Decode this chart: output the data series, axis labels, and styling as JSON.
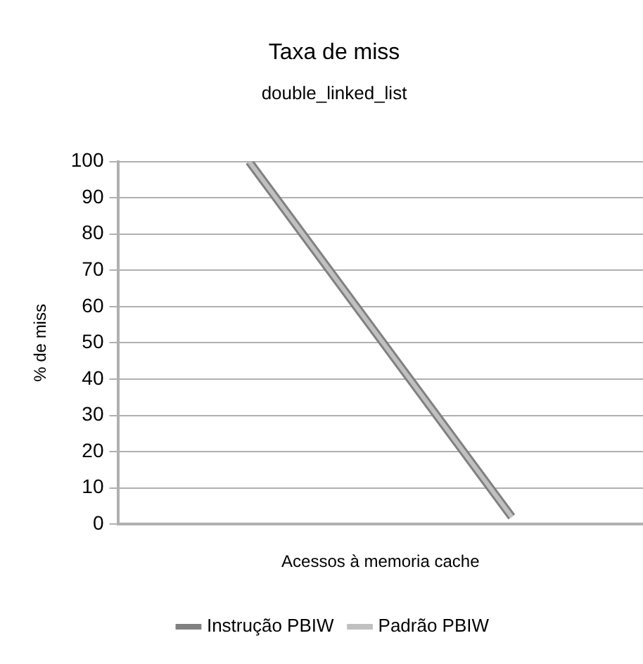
{
  "chart_data": {
    "type": "line",
    "title": "Taxa de miss",
    "subtitle": "double_linked_list",
    "xlabel": "Acessos à memoria cache",
    "ylabel": "% de miss",
    "categories": [
      null,
      null
    ],
    "series": [
      {
        "name": "Instrução PBIW",
        "color": "#808080",
        "values": [
          100,
          2
        ]
      },
      {
        "name": "Padrão PBIW",
        "color": "#c0c0c0",
        "values": [
          100,
          2
        ]
      }
    ],
    "ylim": [
      0,
      100
    ],
    "yticks": [
      0,
      10,
      20,
      30,
      40,
      50,
      60,
      70,
      80,
      90,
      100
    ],
    "grid": "y",
    "legend": "bottom",
    "marker": "none",
    "line_style": "solid",
    "tick_labels": "y"
  }
}
